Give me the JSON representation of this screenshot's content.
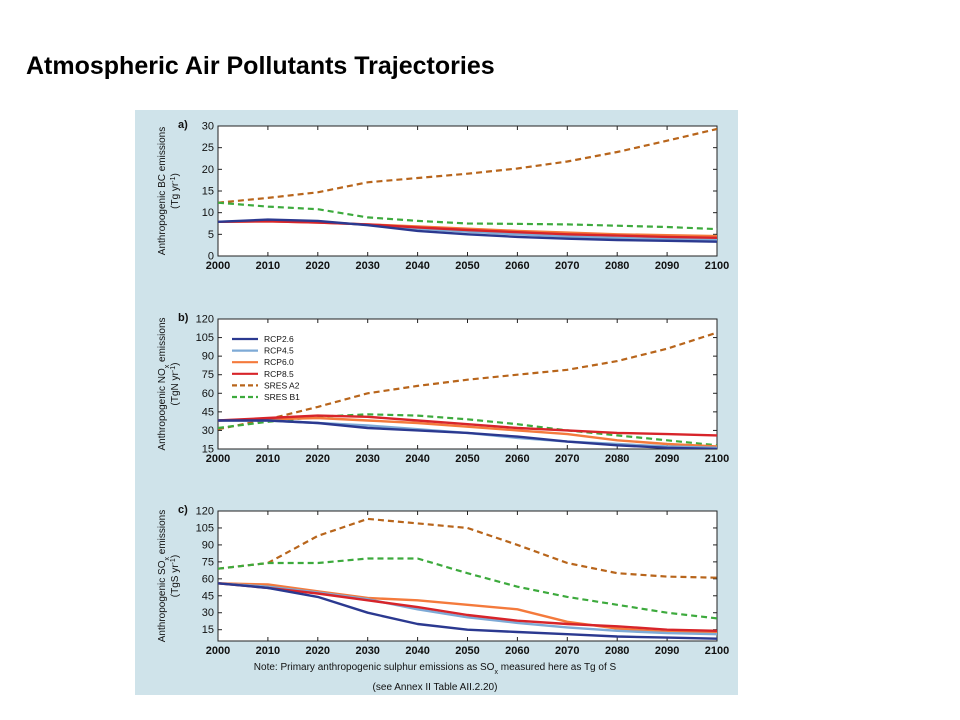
{
  "slide": {
    "title": "Atmospheric Air Pollutants Trajectories",
    "panel_background": "#cfe3ea"
  },
  "figure": {
    "note_line1": "Note: Primary anthropogenic sulphur emissions as SO",
    "note_sub": "x",
    "note_line1_end": " measured here as Tg of S",
    "note_line2": "(see Annex II Table AII.2.20)"
  },
  "legend": {
    "entries": [
      {
        "label": "RCP2.6",
        "color": "#2b3990",
        "style": "solid"
      },
      {
        "label": "RCP4.5",
        "color": "#7eaad6",
        "style": "solid"
      },
      {
        "label": "RCP6.0",
        "color": "#f47a3c",
        "style": "solid"
      },
      {
        "label": "RCP8.5",
        "color": "#d7242a",
        "style": "solid"
      },
      {
        "label": "SRES A2",
        "color": "#b8651b",
        "style": "dashed"
      },
      {
        "label": "SRES B1",
        "color": "#3daa3d",
        "style": "dashed"
      }
    ]
  },
  "chart_data": [
    {
      "type": "line",
      "panel_label": "a)",
      "ylabel_lines": [
        {
          "parts": [
            {
              "t": "Anthropogenic BC emissions"
            }
          ]
        },
        {
          "parts": [
            {
              "t": "(Tg yr"
            },
            {
              "t": "-1",
              "sup": true
            },
            {
              "t": ")"
            }
          ]
        }
      ],
      "x": [
        2000,
        2010,
        2020,
        2030,
        2040,
        2050,
        2060,
        2070,
        2080,
        2090,
        2100
      ],
      "xlim": [
        2000,
        2100
      ],
      "ylim": [
        0,
        30
      ],
      "yticks": [
        0,
        5,
        10,
        15,
        20,
        25,
        30
      ],
      "xticks": [
        2000,
        2010,
        2020,
        2030,
        2040,
        2050,
        2060,
        2070,
        2080,
        2090,
        2100
      ],
      "grid": false,
      "series": [
        {
          "name": "RCP2.6",
          "values": [
            7.9,
            8.4,
            8.1,
            7.1,
            5.8,
            5.0,
            4.4,
            4.0,
            3.7,
            3.5,
            3.3
          ]
        },
        {
          "name": "RCP4.5",
          "values": [
            7.9,
            8.2,
            7.9,
            7.2,
            6.3,
            5.6,
            5.0,
            4.5,
            4.2,
            3.9,
            3.8
          ]
        },
        {
          "name": "RCP6.0",
          "values": [
            7.9,
            8.0,
            7.7,
            7.3,
            6.8,
            6.3,
            5.8,
            5.4,
            5.0,
            4.8,
            4.6
          ]
        },
        {
          "name": "RCP8.5",
          "values": [
            7.9,
            8.0,
            7.7,
            7.3,
            6.6,
            6.0,
            5.5,
            5.0,
            4.7,
            4.4,
            4.2
          ]
        },
        {
          "name": "SRES A2",
          "values": [
            12.3,
            13.4,
            14.7,
            17.0,
            18.0,
            19.0,
            20.2,
            21.8,
            24.0,
            26.6,
            29.3
          ]
        },
        {
          "name": "SRES B1",
          "values": [
            12.3,
            11.4,
            10.8,
            8.9,
            8.1,
            7.5,
            7.4,
            7.3,
            7.0,
            6.7,
            6.2
          ]
        }
      ]
    },
    {
      "type": "line",
      "panel_label": "b)",
      "ylabel_lines": [
        {
          "parts": [
            {
              "t": "Anthropogenic NO"
            },
            {
              "t": "x",
              "sub": true
            },
            {
              "t": " emissions"
            }
          ]
        },
        {
          "parts": [
            {
              "t": "(TgN yr"
            },
            {
              "t": "-1",
              "sup": true
            },
            {
              "t": ")"
            }
          ]
        }
      ],
      "x": [
        2000,
        2010,
        2020,
        2030,
        2040,
        2050,
        2060,
        2070,
        2080,
        2090,
        2100
      ],
      "xlim": [
        2000,
        2100
      ],
      "ylim": [
        15,
        120
      ],
      "yticks": [
        15,
        30,
        45,
        60,
        75,
        90,
        105,
        120
      ],
      "xticks": [
        2000,
        2010,
        2020,
        2030,
        2040,
        2050,
        2060,
        2070,
        2080,
        2090,
        2100
      ],
      "grid": false,
      "legend_position": "top-left",
      "series": [
        {
          "name": "RCP2.6",
          "values": [
            38,
            38,
            36,
            32,
            30,
            28,
            25,
            21,
            18,
            16,
            15
          ]
        },
        {
          "name": "RCP4.5",
          "values": [
            38,
            38,
            36,
            34,
            31,
            28,
            24,
            21,
            19,
            17,
            16
          ]
        },
        {
          "name": "RCP6.0",
          "values": [
            38,
            39,
            40,
            38,
            36,
            33,
            30,
            27,
            22,
            19,
            17
          ]
        },
        {
          "name": "RCP8.5",
          "values": [
            38,
            40,
            42,
            41,
            38,
            35,
            32,
            30,
            28,
            27,
            26
          ]
        },
        {
          "name": "SRES A2",
          "values": [
            31,
            39,
            49,
            60,
            66,
            71,
            75,
            79,
            86,
            96,
            109
          ]
        },
        {
          "name": "SRES B1",
          "values": [
            32,
            37,
            41,
            43,
            42,
            39,
            35,
            30,
            26,
            22,
            18
          ]
        }
      ]
    },
    {
      "type": "line",
      "panel_label": "c)",
      "ylabel_lines": [
        {
          "parts": [
            {
              "t": "Anthropogenic SO"
            },
            {
              "t": "x",
              "sub": true
            },
            {
              "t": " emissions"
            }
          ]
        },
        {
          "parts": [
            {
              "t": "(TgS yr"
            },
            {
              "t": "-1",
              "sup": true
            },
            {
              "t": ")"
            }
          ]
        }
      ],
      "x": [
        2000,
        2010,
        2020,
        2030,
        2040,
        2050,
        2060,
        2070,
        2080,
        2090,
        2100
      ],
      "xlim": [
        2000,
        2100
      ],
      "ylim": [
        5,
        120
      ],
      "yticks": [
        15,
        30,
        45,
        60,
        75,
        90,
        105,
        120
      ],
      "xticks": [
        2000,
        2010,
        2020,
        2030,
        2040,
        2050,
        2060,
        2070,
        2080,
        2090,
        2100
      ],
      "grid": false,
      "series": [
        {
          "name": "RCP2.6",
          "values": [
            56,
            52,
            44,
            30,
            20,
            15,
            13,
            11,
            9,
            8,
            7
          ]
        },
        {
          "name": "RCP4.5",
          "values": [
            56,
            53,
            48,
            42,
            33,
            26,
            21,
            17,
            14,
            12,
            11
          ]
        },
        {
          "name": "RCP6.0",
          "values": [
            56,
            55,
            49,
            43,
            41,
            37,
            33,
            22,
            16,
            13,
            13
          ]
        },
        {
          "name": "RCP8.5",
          "values": [
            56,
            52,
            47,
            41,
            35,
            28,
            23,
            20,
            18,
            15,
            14
          ]
        },
        {
          "name": "SRES A2",
          "values": [
            69,
            74,
            98,
            113,
            109,
            105,
            90,
            74,
            65,
            62,
            61
          ]
        },
        {
          "name": "SRES B1",
          "values": [
            69,
            74,
            74,
            78,
            78,
            65,
            53,
            44,
            37,
            30,
            25
          ]
        }
      ]
    }
  ]
}
